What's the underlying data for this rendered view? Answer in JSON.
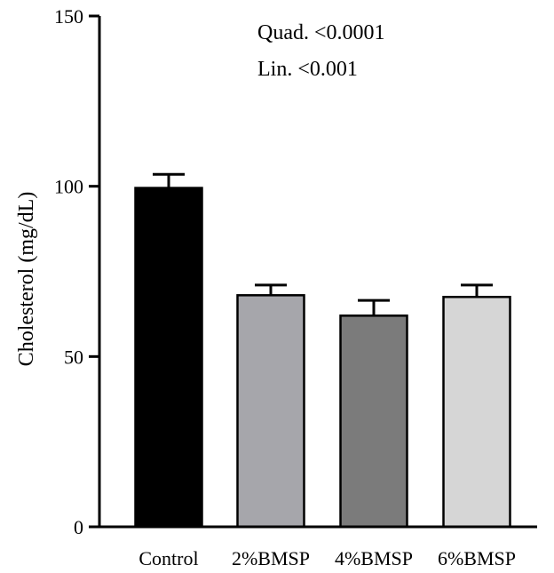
{
  "chart_data": {
    "type": "bar",
    "categories": [
      "Control",
      "2%BMSP",
      "4%BMSP",
      "6%BMSP"
    ],
    "values": [
      99.5,
      68,
      62,
      67.5
    ],
    "errors": [
      4,
      3,
      4.5,
      3.5
    ],
    "bar_colors": [
      "#000000",
      "#a6a6ab",
      "#7b7b7b",
      "#d6d6d6"
    ],
    "ylabel": "Cholesterol (mg/dL)",
    "ylim": [
      0,
      150
    ],
    "yticks": [
      0,
      50,
      100,
      150
    ],
    "annotations": [
      "Quad. <0.0001",
      "Lin. <0.001"
    ],
    "grid": false
  }
}
